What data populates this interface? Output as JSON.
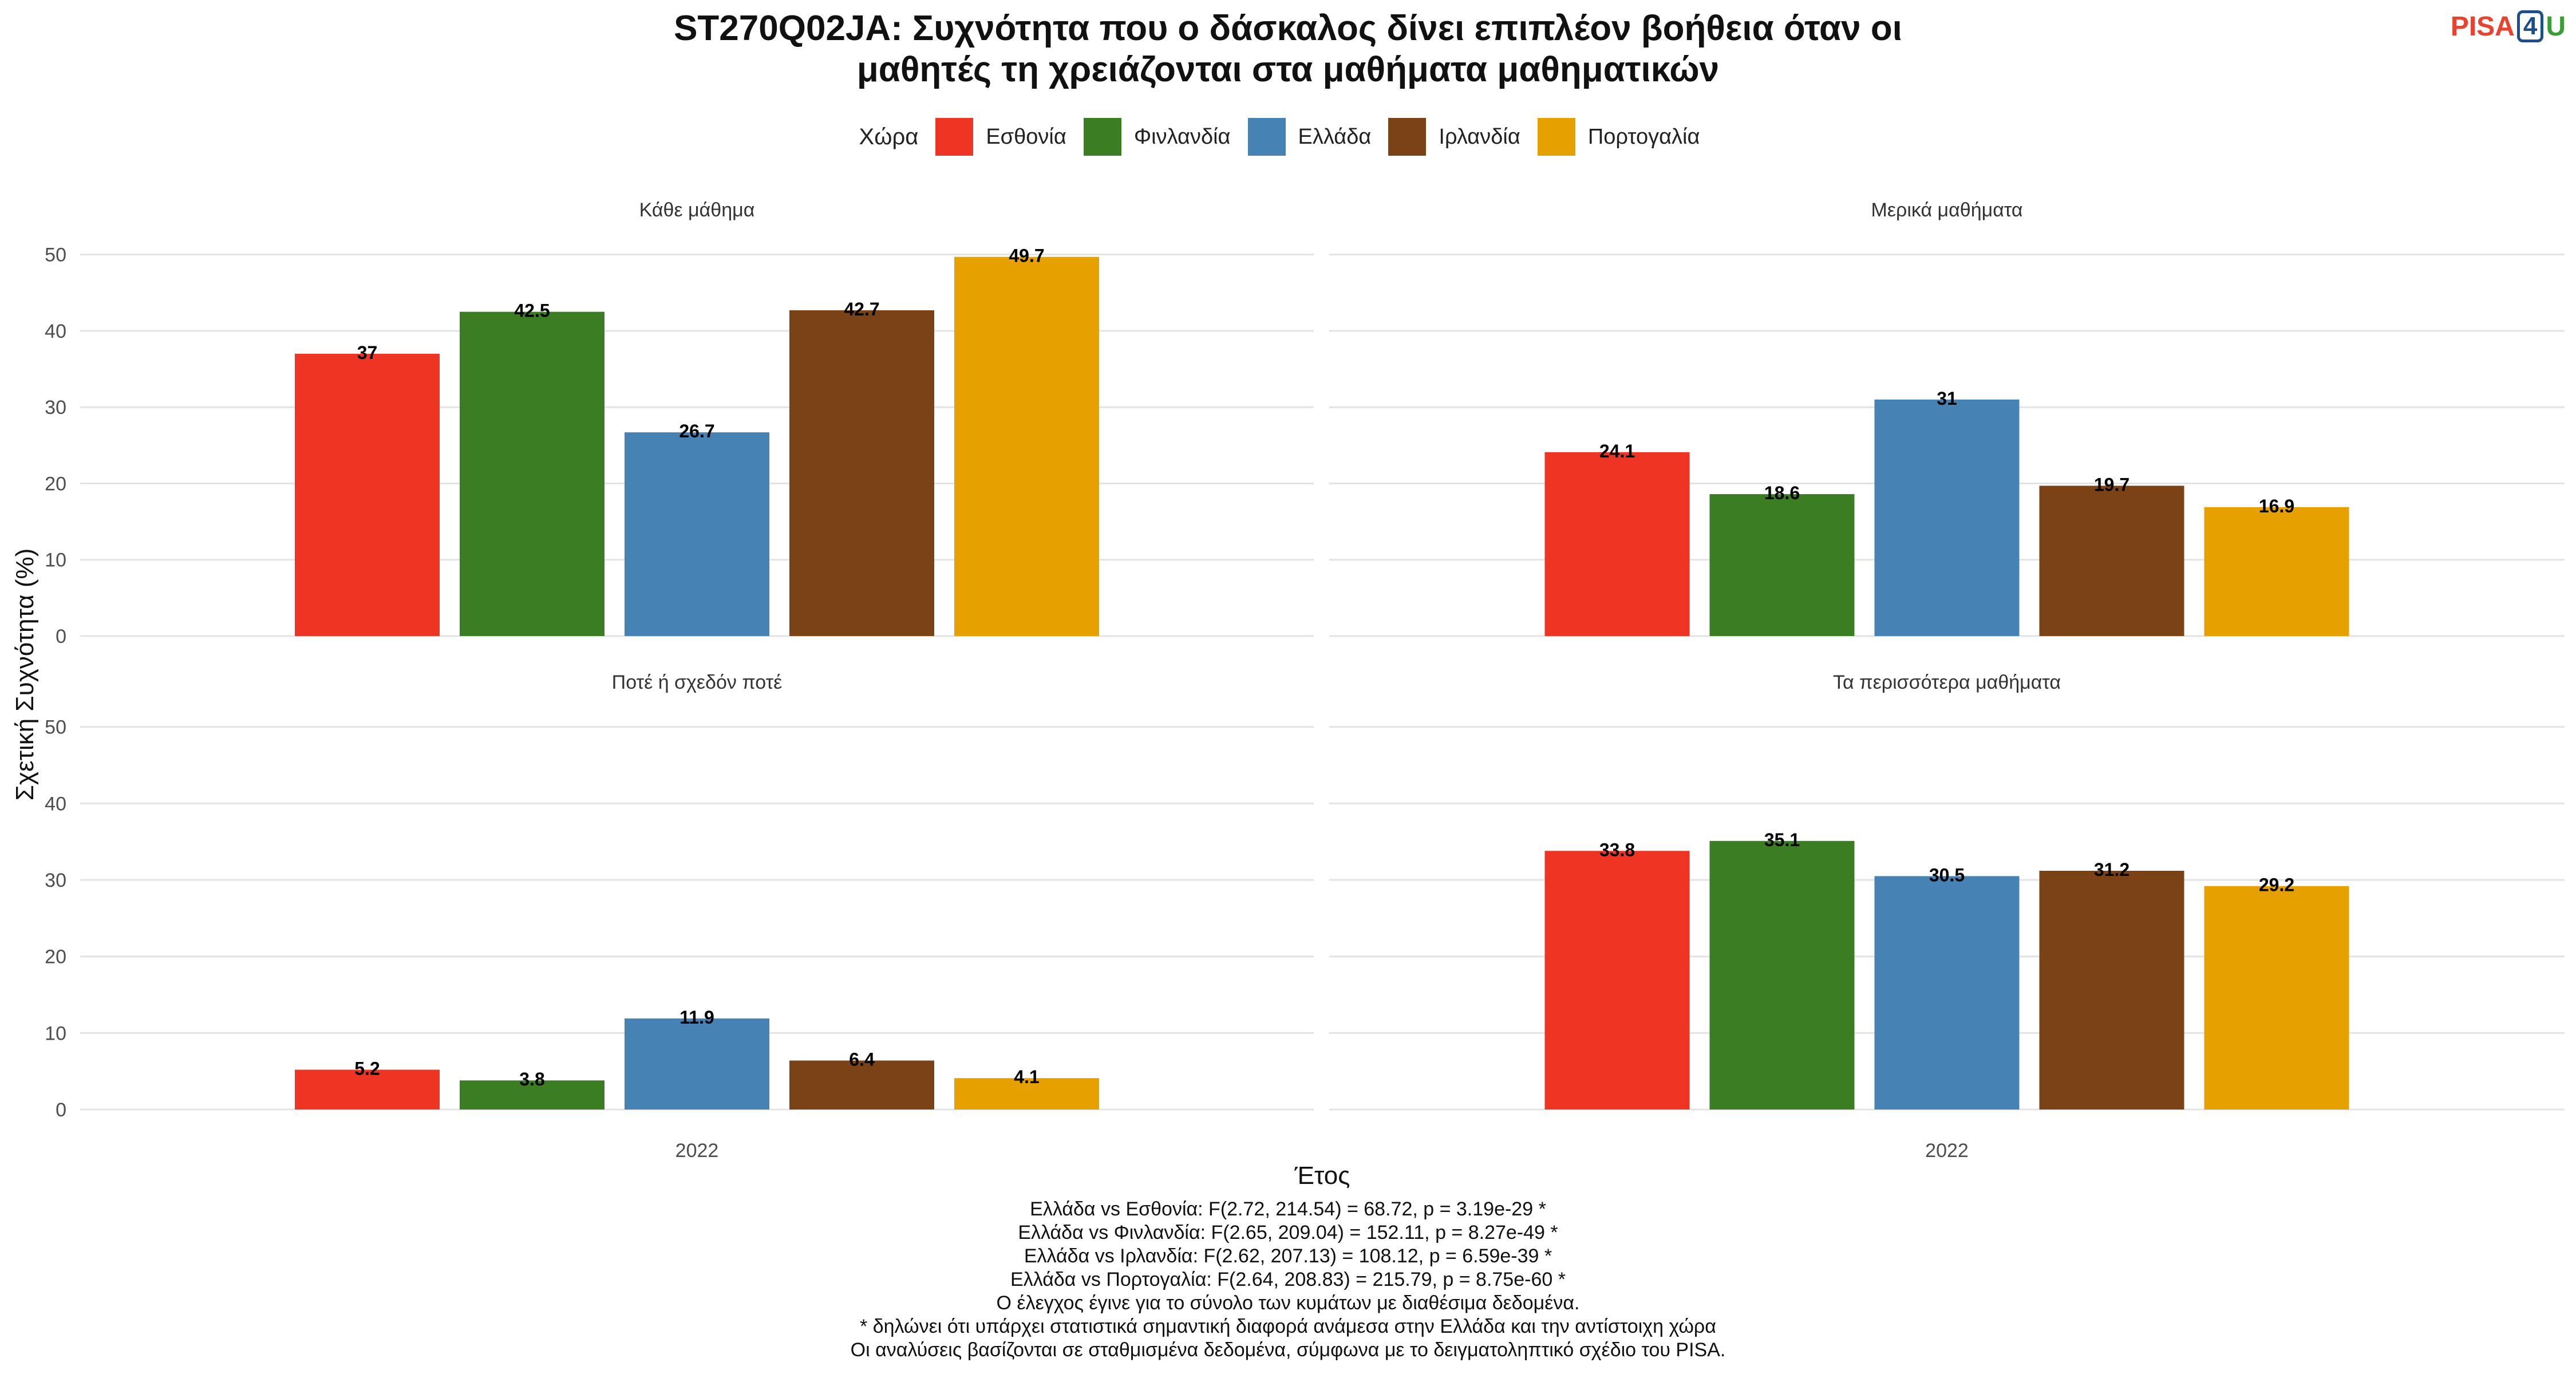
{
  "header": {
    "title_line1": "ST270Q02JA: Συχνότητα που ο δάσκαλος δίνει επιπλέον βοήθεια όταν οι",
    "title_line2": "μαθητές τη χρειάζονται στα μαθήματα μαθηματικών"
  },
  "logo": {
    "pisa": "PISA",
    "four": "4",
    "u": "U"
  },
  "legend": {
    "title": "Χώρα",
    "items": [
      {
        "label": "Εσθονία",
        "color": "#EE3524"
      },
      {
        "label": "Φινλανδία",
        "color": "#3A7D22"
      },
      {
        "label": "Ελλάδα",
        "color": "#4682B4"
      },
      {
        "label": "Ιρλανδία",
        "color": "#7B4216"
      },
      {
        "label": "Πορτογαλία",
        "color": "#E6A100"
      }
    ]
  },
  "chart_data": {
    "type": "bar",
    "title": "ST270Q02JA: Συχνότητα που ο δάσκαλος δίνει επιπλέον βοήθεια όταν οι μαθητές τη χρειάζονται στα μαθήματα μαθηματικών",
    "xlabel": "Έτος",
    "ylabel": "Σχετική Συχνότητα (%)",
    "ylim": [
      0,
      52
    ],
    "yticks": [
      0,
      10,
      20,
      30,
      40,
      50
    ],
    "grid": true,
    "legend_position": "top",
    "series_names": [
      "Εσθονία",
      "Φινλανδία",
      "Ελλάδα",
      "Ιρλανδία",
      "Πορτογαλία"
    ],
    "series_colors": [
      "#EE3524",
      "#3A7D22",
      "#4682B4",
      "#7B4216",
      "#E6A100"
    ],
    "panels": [
      {
        "title": "Κάθε μάθημα",
        "category": "2022",
        "values": [
          37,
          42.5,
          26.7,
          42.7,
          49.7
        ]
      },
      {
        "title": "Μερικά μαθήματα",
        "category": "2022",
        "values": [
          24.1,
          18.6,
          31,
          19.7,
          16.9
        ]
      },
      {
        "title": "Ποτέ ή σχεδόν ποτέ",
        "category": "2022",
        "values": [
          5.2,
          3.8,
          11.9,
          6.4,
          4.1
        ]
      },
      {
        "title": "Τα περισσότερα μαθήματα",
        "category": "2022",
        "values": [
          33.8,
          35.1,
          30.5,
          31.2,
          29.2
        ]
      }
    ]
  },
  "footnotes": [
    "Ελλάδα vs Εσθονία: F(2.72, 214.54) = 68.72, p = 3.19e-29 *",
    "Ελλάδα vs Φινλανδία: F(2.65, 209.04) = 152.11, p = 8.27e-49 *",
    "Ελλάδα vs Ιρλανδία: F(2.62, 207.13) = 108.12, p = 6.59e-39 *",
    "Ελλάδα vs Πορτογαλία: F(2.64, 208.83) = 215.79, p = 8.75e-60 *",
    "Ο έλεγχος έγινε για το σύνολο των κυμάτων με διαθέσιμα δεδομένα.",
    "* δηλώνει ότι υπάρχει στατιστικά σημαντική διαφορά ανάμεσα στην Ελλάδα και την αντίστοιχη χώρα",
    "Οι αναλύσεις βασίζονται σε σταθμισμένα δεδομένα, σύμφωνα με το δειγματοληπτικό σχέδιο του PISA."
  ]
}
